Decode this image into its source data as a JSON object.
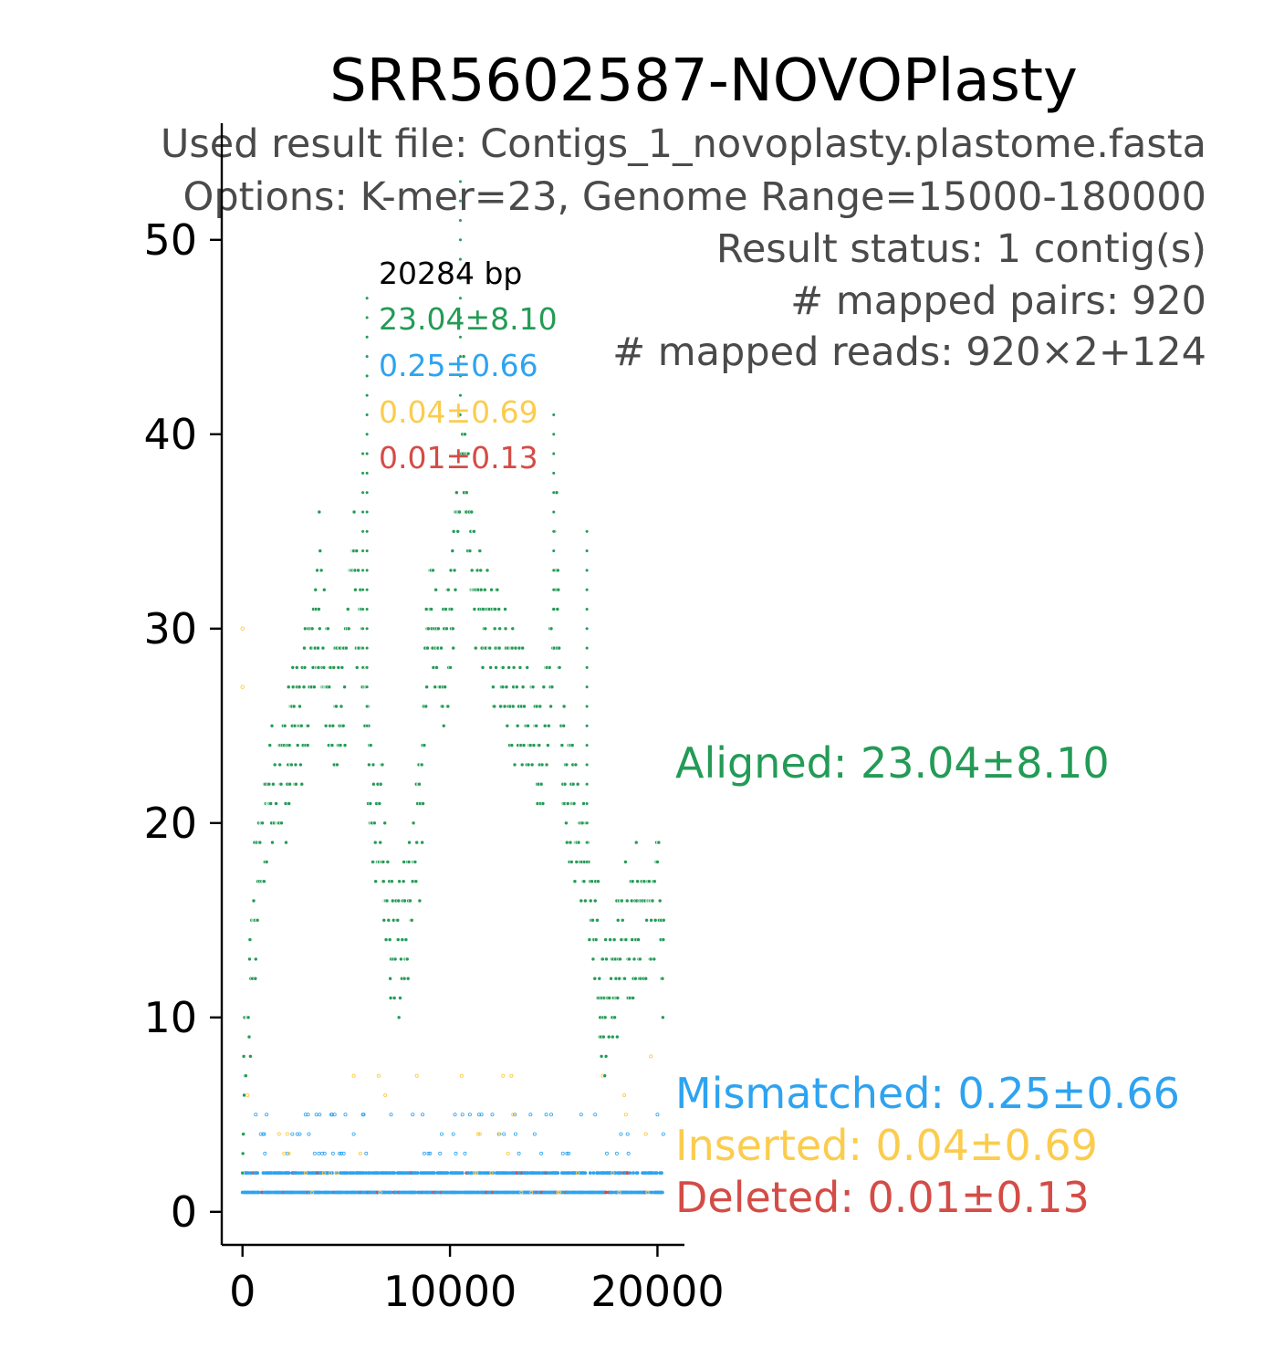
{
  "chart_data": {
    "type": "scatter",
    "title": "SRR5602587-NOVOPlasty",
    "info_lines": [
      "Used result file: Contigs_1_novoplasty.plastome.fasta",
      "Options: K-mer=23, Genome Range=15000-180000",
      "Result status: 1 contig(s)",
      "# mapped pairs: 920",
      "# mapped reads: 920×2+124"
    ],
    "contig": {
      "length_label": "20284 bp",
      "stats": [
        {
          "text": "23.04±8.10",
          "color": "#239b56"
        },
        {
          "text": "0.25±0.66",
          "color": "#2ea3f0"
        },
        {
          "text": "0.04±0.69",
          "color": "#fbcc4d"
        },
        {
          "text": "0.01±0.13",
          "color": "#d44c46"
        }
      ]
    },
    "xlim": [
      -1000,
      21300
    ],
    "ylim": [
      -1.7,
      56
    ],
    "x_ticks": [
      0,
      10000,
      20000
    ],
    "y_ticks": [
      0,
      10,
      20,
      30,
      40,
      50
    ],
    "series": [
      {
        "name": "Aligned",
        "legend": "Aligned: 23.04±8.10",
        "color": "#239b56",
        "profile": [
          [
            0,
            4
          ],
          [
            300,
            11
          ],
          [
            700,
            17
          ],
          [
            1200,
            21
          ],
          [
            1800,
            22
          ],
          [
            2500,
            25
          ],
          [
            3200,
            27
          ],
          [
            3700,
            32
          ],
          [
            4200,
            26
          ],
          [
            4800,
            26
          ],
          [
            5300,
            33
          ],
          [
            5700,
            29
          ],
          [
            6000,
            25
          ],
          [
            6300,
            21
          ],
          [
            6700,
            19
          ],
          [
            7200,
            14
          ],
          [
            7700,
            14
          ],
          [
            8200,
            17
          ],
          [
            8600,
            21
          ],
          [
            9000,
            31
          ],
          [
            9700,
            28
          ],
          [
            10200,
            32
          ],
          [
            10500,
            42
          ],
          [
            10800,
            38
          ],
          [
            11300,
            31
          ],
          [
            12000,
            30
          ],
          [
            12600,
            28
          ],
          [
            13200,
            26
          ],
          [
            13800,
            25
          ],
          [
            14400,
            23
          ],
          [
            14800,
            27
          ],
          [
            15100,
            34
          ],
          [
            15500,
            22
          ],
          [
            16000,
            20
          ],
          [
            16600,
            18
          ],
          [
            17000,
            14
          ],
          [
            17500,
            10
          ],
          [
            18000,
            13
          ],
          [
            18600,
            14
          ],
          [
            19200,
            15
          ],
          [
            19700,
            15
          ],
          [
            20000,
            17
          ],
          [
            20284,
            13
          ]
        ],
        "peaks": [
          [
            5800,
            39
          ],
          [
            10500,
            53
          ],
          [
            15000,
            41
          ],
          [
            6000,
            47
          ],
          [
            16600,
            35
          ]
        ]
      },
      {
        "name": "Mismatched",
        "legend": "Mismatched: 0.25±0.66",
        "color": "#2ea3f0"
      },
      {
        "name": "Inserted",
        "legend": "Inserted: 0.04±0.69",
        "color": "#fbcc4d"
      },
      {
        "name": "Deleted",
        "legend": "Deleted: 0.01±0.13",
        "color": "#d44c46"
      }
    ],
    "grid": false,
    "legend_placement": "right"
  }
}
